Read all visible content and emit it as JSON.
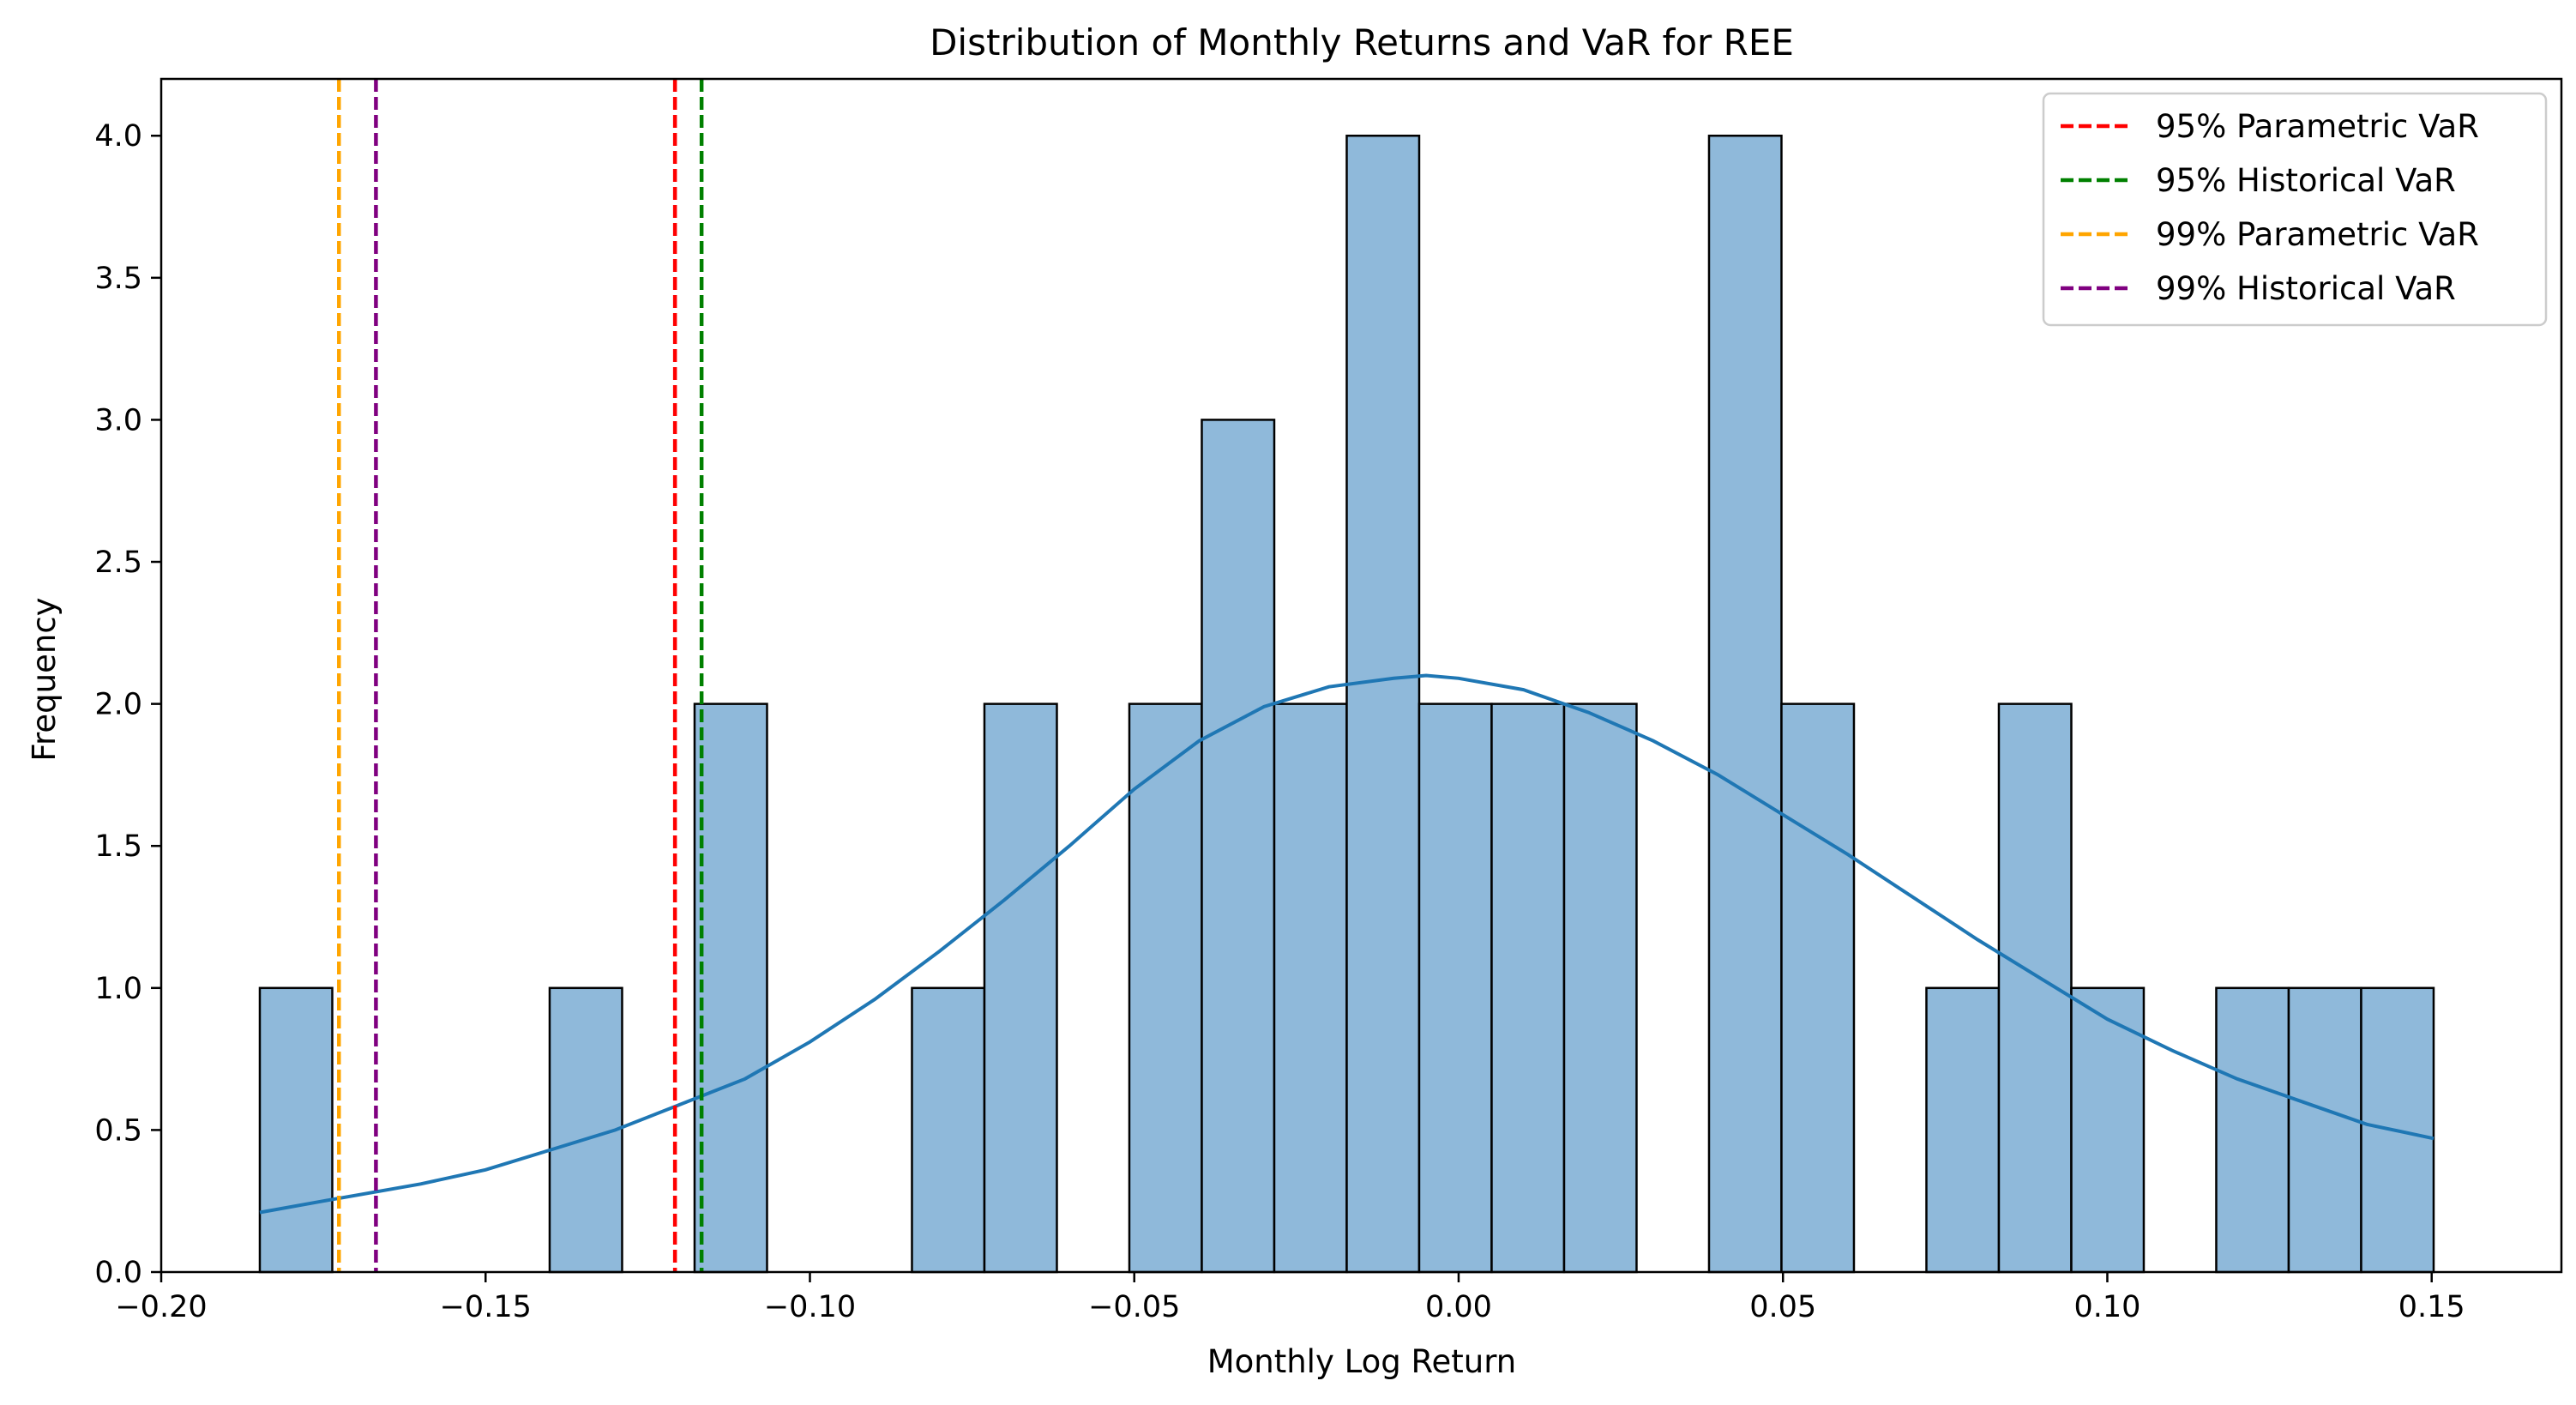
{
  "chart_data": {
    "type": "bar",
    "title": "Distribution of Monthly Returns and VaR for REE",
    "xlabel": "Monthly Log Return",
    "ylabel": "Frequency",
    "xlim": [
      -0.2,
      0.17
    ],
    "ylim": [
      0,
      4.2
    ],
    "xticks": [
      -0.2,
      -0.15,
      -0.1,
      -0.05,
      0.0,
      0.05,
      0.1,
      0.15
    ],
    "xtick_labels": [
      "−0.20",
      "−0.15",
      "−0.10",
      "−0.05",
      "0.00",
      "0.05",
      "0.10",
      "0.15"
    ],
    "yticks": [
      0,
      0.5,
      1,
      1.5,
      2,
      2.5,
      3,
      3.5,
      4
    ],
    "ytick_labels": [
      "0.0",
      "0.5",
      "1.0",
      "1.5",
      "2.0",
      "2.5",
      "3.0",
      "3.5",
      "4.0"
    ],
    "grid": false,
    "legend_position": "top-right",
    "histogram": {
      "bin_start": -0.1848,
      "bin_width": 0.01117,
      "counts": [
        1,
        0,
        0,
        0,
        1,
        0,
        2,
        0,
        0,
        1,
        2,
        0,
        2,
        3,
        2,
        4,
        2,
        2,
        2,
        0,
        4,
        2,
        0,
        1,
        2,
        1,
        0,
        1,
        1,
        1
      ],
      "fill_color": "#8fb9da",
      "edge_color": "#000000"
    },
    "kde": {
      "color": "#1f77b4",
      "x": [
        -0.1848,
        -0.175,
        -0.16,
        -0.15,
        -0.14,
        -0.13,
        -0.12,
        -0.11,
        -0.1,
        -0.09,
        -0.08,
        -0.07,
        -0.06,
        -0.05,
        -0.04,
        -0.03,
        -0.02,
        -0.01,
        -0.005,
        0.0,
        0.01,
        0.02,
        0.03,
        0.04,
        0.05,
        0.06,
        0.07,
        0.08,
        0.09,
        0.1,
        0.11,
        0.12,
        0.13,
        0.14,
        0.1503
      ],
      "y": [
        0.21,
        0.25,
        0.31,
        0.36,
        0.43,
        0.5,
        0.59,
        0.68,
        0.81,
        0.96,
        1.13,
        1.31,
        1.5,
        1.7,
        1.87,
        1.99,
        2.06,
        2.09,
        2.1,
        2.09,
        2.05,
        1.97,
        1.87,
        1.75,
        1.61,
        1.47,
        1.32,
        1.17,
        1.03,
        0.89,
        0.78,
        0.68,
        0.6,
        0.52,
        0.47
      ]
    },
    "var_lines": [
      {
        "name": "95% Parametric VaR",
        "x": -0.1208,
        "color": "#ff0000"
      },
      {
        "name": "95% Historical VaR",
        "x": -0.1167,
        "color": "#008000"
      },
      {
        "name": "99% Parametric VaR",
        "x": -0.1726,
        "color": "#ffa500"
      },
      {
        "name": "99% Historical VaR",
        "x": -0.1669,
        "color": "#800080"
      }
    ]
  }
}
